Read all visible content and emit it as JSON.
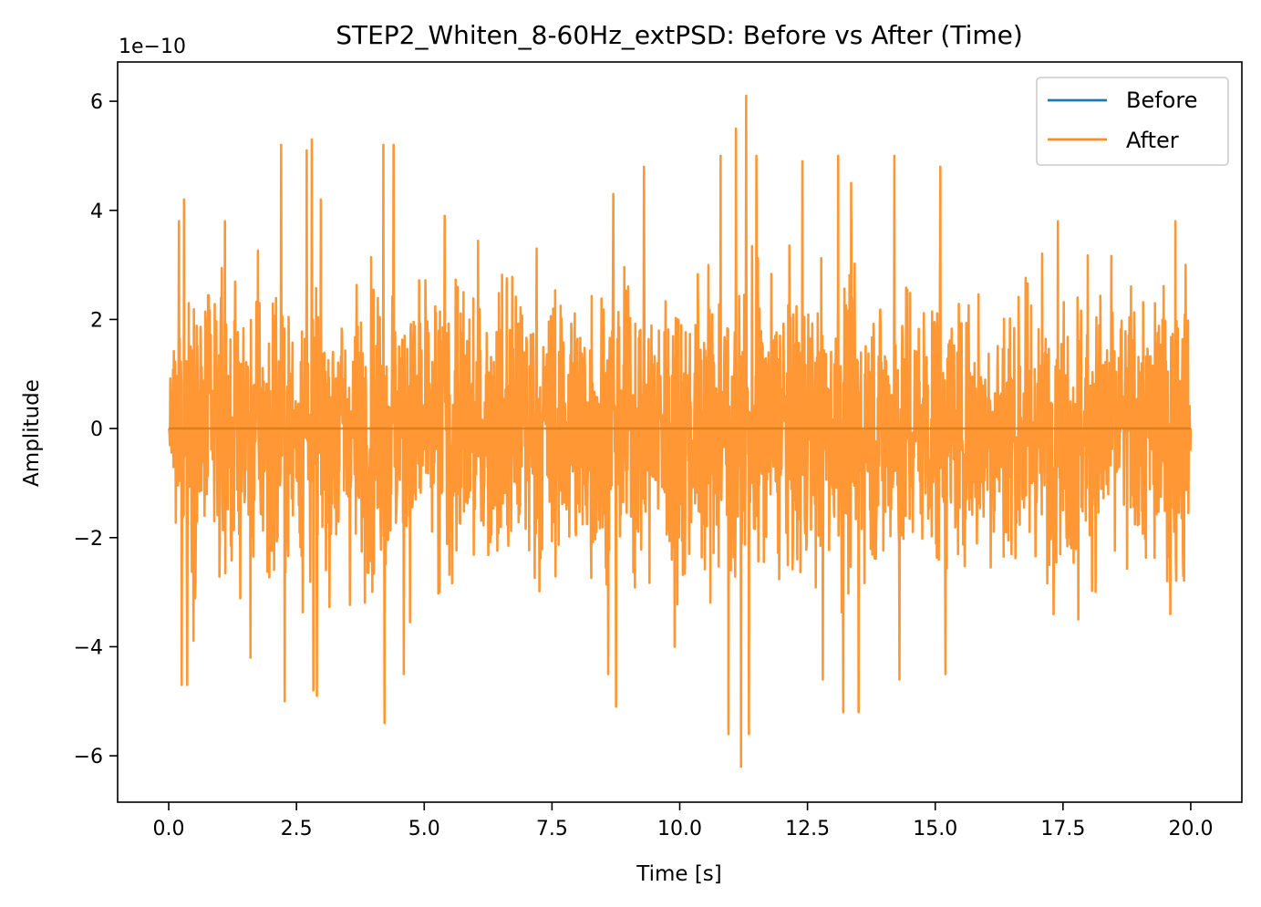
{
  "chart_data": {
    "type": "line",
    "title": "STEP2_Whiten_8-60Hz_extPSD: Before vs After (Time)",
    "xlabel": "Time [s]",
    "ylabel": "Amplitude",
    "y_offset_label": "1e−10",
    "xlim": [
      -1.0,
      21.0
    ],
    "ylim": [
      -6.85,
      6.72
    ],
    "x_ticks": [
      0.0,
      2.5,
      5.0,
      7.5,
      10.0,
      12.5,
      15.0,
      17.5,
      20.0
    ],
    "x_tick_labels": [
      "0.0",
      "2.5",
      "5.0",
      "7.5",
      "10.0",
      "12.5",
      "15.0",
      "17.5",
      "20.0"
    ],
    "y_ticks": [
      -6,
      -4,
      -2,
      0,
      2,
      4,
      6
    ],
    "y_tick_labels": [
      "−6",
      "−4",
      "−2",
      "0",
      "2",
      "4",
      "6"
    ],
    "grid": false,
    "legend_position": "top-right",
    "legend": [
      "Before",
      "After"
    ],
    "series": [
      {
        "name": "Before",
        "color": "#1f77b4",
        "x": [
          0.0,
          20.0
        ],
        "y": [
          0.0,
          0.0
        ]
      },
      {
        "name": "After",
        "color": "#ff8c1f",
        "x_start": 0.0,
        "x_end": 20.0,
        "peaks": [
          {
            "x": 0.2,
            "y": 3.8
          },
          {
            "x": 0.25,
            "y": -4.7
          },
          {
            "x": 0.3,
            "y": 4.2
          },
          {
            "x": 0.36,
            "y": -4.7
          },
          {
            "x": 1.1,
            "y": 3.8
          },
          {
            "x": 1.6,
            "y": -4.2
          },
          {
            "x": 2.2,
            "y": 5.2
          },
          {
            "x": 2.27,
            "y": -5.0
          },
          {
            "x": 2.7,
            "y": 5.1
          },
          {
            "x": 2.8,
            "y": 5.3
          },
          {
            "x": 2.83,
            "y": -4.8
          },
          {
            "x": 2.9,
            "y": -4.9
          },
          {
            "x": 4.2,
            "y": 5.2
          },
          {
            "x": 4.22,
            "y": -5.4
          },
          {
            "x": 4.4,
            "y": 5.2
          },
          {
            "x": 4.6,
            "y": -4.5
          },
          {
            "x": 5.4,
            "y": 3.9
          },
          {
            "x": 5.3,
            "y": -3.0
          },
          {
            "x": 7.2,
            "y": 3.3
          },
          {
            "x": 8.6,
            "y": -4.5
          },
          {
            "x": 8.7,
            "y": 4.3
          },
          {
            "x": 8.75,
            "y": -5.1
          },
          {
            "x": 9.3,
            "y": 4.8
          },
          {
            "x": 9.9,
            "y": -4.0
          },
          {
            "x": 10.8,
            "y": 5.0
          },
          {
            "x": 10.95,
            "y": -5.6
          },
          {
            "x": 11.1,
            "y": 5.5
          },
          {
            "x": 11.2,
            "y": -6.2
          },
          {
            "x": 11.3,
            "y": 6.1
          },
          {
            "x": 11.35,
            "y": -5.6
          },
          {
            "x": 11.5,
            "y": 5.0
          },
          {
            "x": 12.4,
            "y": 4.9
          },
          {
            "x": 12.8,
            "y": -4.6
          },
          {
            "x": 13.1,
            "y": 5.0
          },
          {
            "x": 13.2,
            "y": -5.2
          },
          {
            "x": 13.35,
            "y": 4.5
          },
          {
            "x": 13.5,
            "y": -5.2
          },
          {
            "x": 14.2,
            "y": 5.0
          },
          {
            "x": 14.3,
            "y": -4.6
          },
          {
            "x": 15.1,
            "y": 4.8
          },
          {
            "x": 15.2,
            "y": -4.5
          },
          {
            "x": 17.4,
            "y": 3.8
          },
          {
            "x": 17.8,
            "y": -3.5
          },
          {
            "x": 19.7,
            "y": 3.8
          },
          {
            "x": 19.6,
            "y": -3.4
          },
          {
            "x": 19.9,
            "y": 3.0
          },
          {
            "x": 19.85,
            "y": -2.7
          }
        ]
      }
    ]
  }
}
